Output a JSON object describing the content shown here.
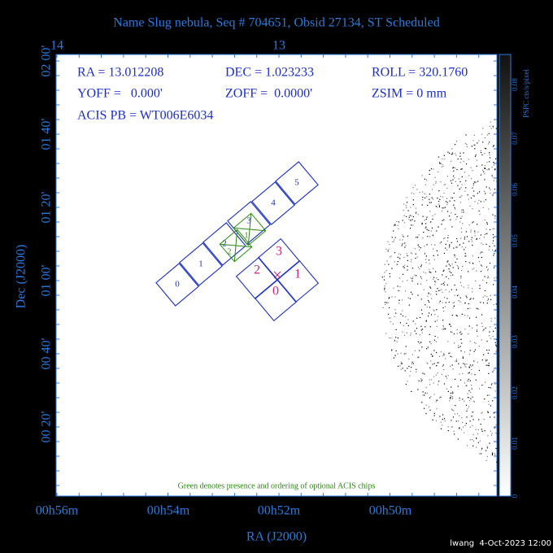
{
  "title": "Name Slug nebula, Seq # 704651, Obsid 27134, ST Scheduled",
  "top_axis": {
    "labels": [
      "14",
      "13"
    ]
  },
  "left_axis": {
    "title": "Dec (J2000)",
    "labels": [
      "02 00'",
      "01 40'",
      "01 20'",
      "01 00'",
      "00 40'",
      "00 20'"
    ]
  },
  "bottom_axis": {
    "title": "RA (J2000)",
    "labels": [
      "00h56m",
      "00h54m",
      "00h52m",
      "00h50m"
    ]
  },
  "info": {
    "ra": "RA = 13.012208",
    "dec": "DEC = 1.023233",
    "roll": "ROLL = 320.1760",
    "yoff": "YOFF =   0.000'",
    "zoff": "ZOFF =  0.0000'",
    "zsim": "ZSIM = 0 mm",
    "acis_pb": "ACIS PB = WT006E6034"
  },
  "colorbar": {
    "title": "PSPC cts/s/pixel",
    "labels": [
      "0",
      "0.01",
      "0.02",
      "0.03",
      "0.04",
      "0.05",
      "0.06",
      "0.07",
      "0.08"
    ]
  },
  "acis_s": {
    "labels": [
      "0",
      "1",
      "2",
      "3",
      "4",
      "5"
    ]
  },
  "acis_i": {
    "labels": [
      "0",
      "1",
      "2",
      "3"
    ]
  },
  "optional_chips": {
    "labels": [
      "2",
      "1"
    ]
  },
  "note": "Green denotes presence and ordering of optional ACIS chips",
  "footer": "lwang  4-Oct-2023 12:00"
}
